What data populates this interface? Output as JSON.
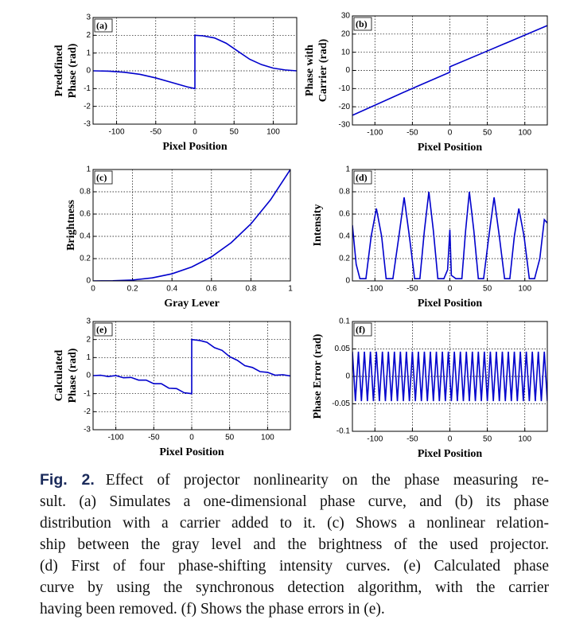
{
  "chart_data": [
    {
      "type": "line",
      "panel": "(a)",
      "ylabel": [
        "Predefined",
        "Phase (rad)"
      ],
      "xlabel": "Pixel Position",
      "xlim": [
        -130,
        130
      ],
      "xticks": [
        -100,
        -50,
        0,
        50,
        100
      ],
      "ylim": [
        -3,
        3
      ],
      "yticks": [
        -3,
        -2,
        -1,
        0,
        1,
        2,
        3
      ],
      "grid": true,
      "series": [
        {
          "color": "#0000cc",
          "x": [
            -130,
            -110,
            -90,
            -70,
            -50,
            -30,
            -10,
            0,
            0,
            10,
            25,
            40,
            55,
            70,
            85,
            100,
            115,
            130
          ],
          "values": [
            0,
            -0.02,
            -0.08,
            -0.2,
            -0.4,
            -0.65,
            -0.9,
            -1,
            2,
            1.97,
            1.85,
            1.55,
            1.1,
            0.65,
            0.35,
            0.15,
            0.05,
            0
          ]
        }
      ]
    },
    {
      "type": "line",
      "panel": "(b)",
      "ylabel": [
        "Phase with",
        "Carrier (rad)"
      ],
      "xlabel": "Pixel Position",
      "xlim": [
        -130,
        130
      ],
      "xticks": [
        -100,
        -50,
        0,
        50,
        100
      ],
      "ylim": [
        -30,
        30
      ],
      "yticks": [
        -30,
        -20,
        -10,
        0,
        10,
        20,
        30
      ],
      "grid": true,
      "series": [
        {
          "color": "#0000cc",
          "x": [
            -130,
            -50,
            0,
            0,
            50,
            130
          ],
          "values": [
            -24.7,
            -9.9,
            -1,
            2,
            10.7,
            24.7
          ]
        }
      ]
    },
    {
      "type": "line",
      "panel": "(c)",
      "ylabel": [
        "Brightness"
      ],
      "xlabel": "Gray Lever",
      "xlim": [
        0,
        1
      ],
      "xticks": [
        0,
        0.2,
        0.4,
        0.6,
        0.8,
        1
      ],
      "ylim": [
        0,
        1
      ],
      "yticks": [
        0,
        0.2,
        0.4,
        0.6,
        0.8,
        1
      ],
      "grid": true,
      "series": [
        {
          "color": "#0000cc",
          "x": [
            0,
            0.1,
            0.2,
            0.3,
            0.4,
            0.5,
            0.6,
            0.7,
            0.8,
            0.9,
            1
          ],
          "values": [
            0,
            0.001,
            0.008,
            0.027,
            0.064,
            0.125,
            0.216,
            0.343,
            0.512,
            0.729,
            1
          ]
        }
      ]
    },
    {
      "type": "line",
      "panel": "(d)",
      "ylabel": [
        "Intensity"
      ],
      "xlabel": "Pixel Position",
      "xlim": [
        -130,
        130
      ],
      "xticks": [
        -100,
        -50,
        0,
        50,
        100
      ],
      "ylim": [
        0,
        1
      ],
      "yticks": [
        0,
        0.2,
        0.4,
        0.6,
        0.8,
        1
      ],
      "grid": true,
      "series": [
        {
          "color": "#0000cc",
          "x": [
            -130,
            -125,
            -120,
            -112,
            -105,
            -98,
            -91,
            -85,
            -76,
            -68,
            -61,
            -54,
            -47,
            -40,
            -34,
            -28,
            -22,
            -16,
            -8,
            -3,
            0,
            2,
            8,
            16,
            21,
            26,
            32,
            38,
            45,
            52,
            59,
            66,
            73,
            80,
            86,
            92,
            99,
            106,
            113,
            120,
            126,
            130
          ],
          "values": [
            0.5,
            0.15,
            0.02,
            0.02,
            0.4,
            0.65,
            0.4,
            0.02,
            0.02,
            0.4,
            0.75,
            0.4,
            0.02,
            0.02,
            0.45,
            0.8,
            0.45,
            0.02,
            0.02,
            0.1,
            0.46,
            0.05,
            0.02,
            0.02,
            0.45,
            0.8,
            0.45,
            0.02,
            0.02,
            0.4,
            0.75,
            0.4,
            0.02,
            0.02,
            0.4,
            0.65,
            0.4,
            0.02,
            0.02,
            0.2,
            0.55,
            0.52
          ]
        }
      ]
    },
    {
      "type": "line",
      "panel": "(e)",
      "ylabel": [
        "Calculated",
        "Phase (rad)"
      ],
      "xlabel": "Pixel Position",
      "xlim": [
        -130,
        130
      ],
      "xticks": [
        -100,
        -50,
        0,
        50,
        100
      ],
      "ylim": [
        -3,
        3
      ],
      "yticks": [
        -3,
        -2,
        -1,
        0,
        1,
        2,
        3
      ],
      "grid": true,
      "series": [
        {
          "color": "#0000cc",
          "x": [
            -130,
            -120,
            -110,
            -100,
            -90,
            -80,
            -70,
            -60,
            -50,
            -40,
            -30,
            -20,
            -10,
            0,
            0,
            10,
            20,
            30,
            40,
            50,
            60,
            70,
            80,
            90,
            100,
            110,
            120,
            130
          ],
          "values": [
            0,
            0.02,
            -0.05,
            0,
            -0.12,
            -0.1,
            -0.25,
            -0.25,
            -0.45,
            -0.45,
            -0.7,
            -0.72,
            -0.95,
            -1,
            2,
            1.95,
            1.85,
            1.55,
            1.4,
            1.05,
            0.85,
            0.55,
            0.45,
            0.22,
            0.18,
            0.02,
            0.05,
            -0.02
          ]
        }
      ]
    },
    {
      "type": "line",
      "panel": "(f)",
      "ylabel": [
        "Phase Error (rad)"
      ],
      "xlabel": "Pixel Position",
      "xlim": [
        -130,
        130
      ],
      "xticks": [
        -100,
        -50,
        0,
        50,
        100
      ],
      "ylim": [
        -0.1,
        0.1
      ],
      "yticks": [
        -0.1,
        -0.05,
        0,
        0.05,
        0.1
      ],
      "grid": true,
      "series": [
        {
          "color": "#0000cc",
          "x": [
            -130,
            -126,
            -122,
            -118,
            -114,
            -110,
            -106,
            -102,
            -98,
            -94,
            -90,
            -86,
            -82,
            -78,
            -74,
            -70,
            -66,
            -62,
            -58,
            -54,
            -50,
            -46,
            -42,
            -38,
            -34,
            -30,
            -26,
            -22,
            -18,
            -14,
            -10,
            -6,
            -2,
            2,
            6,
            10,
            14,
            18,
            22,
            26,
            30,
            34,
            38,
            42,
            46,
            50,
            54,
            58,
            62,
            66,
            70,
            74,
            78,
            82,
            86,
            90,
            94,
            98,
            102,
            106,
            110,
            114,
            118,
            122,
            126,
            130
          ],
          "values": [
            0.045,
            -0.045,
            0.045,
            -0.045,
            0.045,
            -0.045,
            0.045,
            -0.045,
            0.045,
            -0.045,
            0.045,
            -0.045,
            0.045,
            -0.045,
            0.045,
            -0.045,
            0.045,
            -0.045,
            0.045,
            -0.045,
            0.045,
            -0.045,
            0.045,
            -0.045,
            0.045,
            -0.045,
            0.045,
            -0.045,
            0.045,
            -0.045,
            0.045,
            -0.045,
            0.045,
            -0.045,
            0.045,
            -0.045,
            0.045,
            -0.045,
            0.045,
            -0.045,
            0.045,
            -0.045,
            0.045,
            -0.045,
            0.045,
            -0.045,
            0.045,
            -0.045,
            0.045,
            -0.045,
            0.045,
            -0.045,
            0.045,
            -0.045,
            0.045,
            -0.045,
            0.045,
            -0.045,
            0.045,
            -0.045,
            0.045,
            -0.045,
            0.045,
            -0.045,
            0.045,
            -0.045
          ]
        }
      ]
    }
  ],
  "caption": {
    "label": "Fig. 2.",
    "lines": [
      "Effect of projector nonlinearity on the phase measuring re-",
      "sult. (a) Simulates a one-dimensional phase curve, and (b) its phase",
      "distribution with a carrier added to it. (c) Shows a nonlinear relation-",
      "ship between the gray level and the brightness of the used projector.",
      "(d) First of four phase-shifting intensity curves. (e) Calculated phase",
      "curve by using the synchronous detection algorithm, with the carrier",
      "having been removed. (f) Shows the phase errors in (e)."
    ]
  }
}
